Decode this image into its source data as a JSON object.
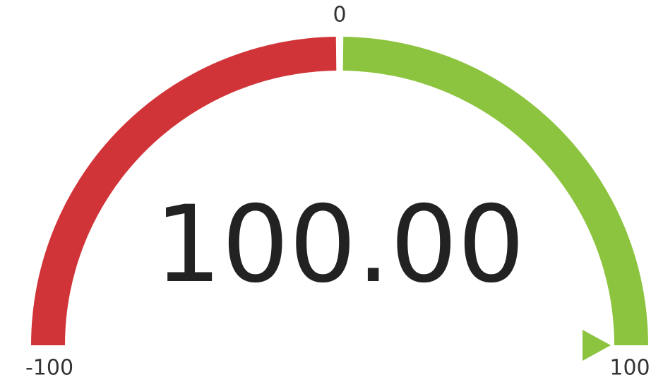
{
  "chart_data": {
    "type": "gauge",
    "values": [
      100
    ],
    "value_labels": [
      "100.00"
    ],
    "ylim": [
      -100,
      100
    ],
    "yticks": [
      -100,
      0,
      100
    ],
    "bands": [
      {
        "from": -100,
        "to": 0,
        "color": "#d13438"
      },
      {
        "from": 0,
        "to": 100,
        "color": "#8cc43f"
      }
    ],
    "pointer_color": "#8cc43f"
  }
}
